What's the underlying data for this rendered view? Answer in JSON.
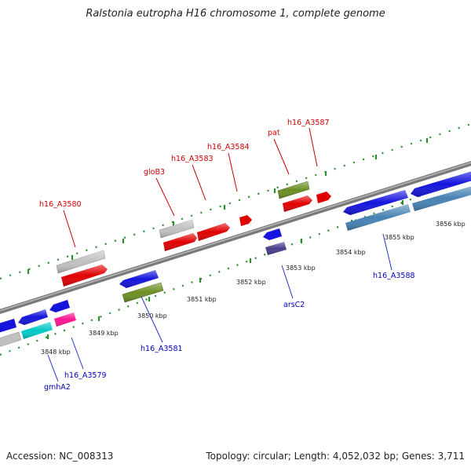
{
  "title": "Ralstonia eutropha H16 chromosome 1, complete genome",
  "footer": {
    "accession": "Accession: NC_008313",
    "summary": "Topology: circular; Length: 4,052,032 bp; Genes: 3,711"
  },
  "colors": {
    "backbone": "#8a8a8a",
    "tick": "#2e8b2e",
    "label_red": "#cc0000",
    "label_blue": "#0000bb",
    "leader_red": "#cc0000",
    "leader_blue": "#2233cc"
  },
  "scale_ticks": [
    {
      "label": "3848 kbp"
    },
    {
      "label": "3849 kbp"
    },
    {
      "label": "3850 kbp"
    },
    {
      "label": "3851 kbp"
    },
    {
      "label": "3852 kbp"
    },
    {
      "label": "3853 kbp"
    },
    {
      "label": "3854 kbp"
    },
    {
      "label": "3855 kbp"
    },
    {
      "label": "3856 kbp"
    }
  ],
  "gene_labels": [
    {
      "text": "h16_A3580",
      "color": "red"
    },
    {
      "text": "gloB3",
      "color": "red"
    },
    {
      "text": "h16_A3583",
      "color": "red"
    },
    {
      "text": "h16_A3584",
      "color": "red"
    },
    {
      "text": "pat",
      "color": "red"
    },
    {
      "text": "h16_A3587",
      "color": "red"
    },
    {
      "text": "gmhA2",
      "color": "blue"
    },
    {
      "text": "h16_A3579",
      "color": "blue"
    },
    {
      "text": "h16_A3581",
      "color": "blue"
    },
    {
      "text": "arsC2",
      "color": "blue"
    },
    {
      "text": "h16_A3588",
      "color": "blue"
    }
  ],
  "gene_colors": [
    "#e00000",
    "#1414dd",
    "#6b8e23",
    "#c0c0c0",
    "#00c8c8",
    "#ff1493",
    "#4682b4",
    "#483d8b"
  ]
}
